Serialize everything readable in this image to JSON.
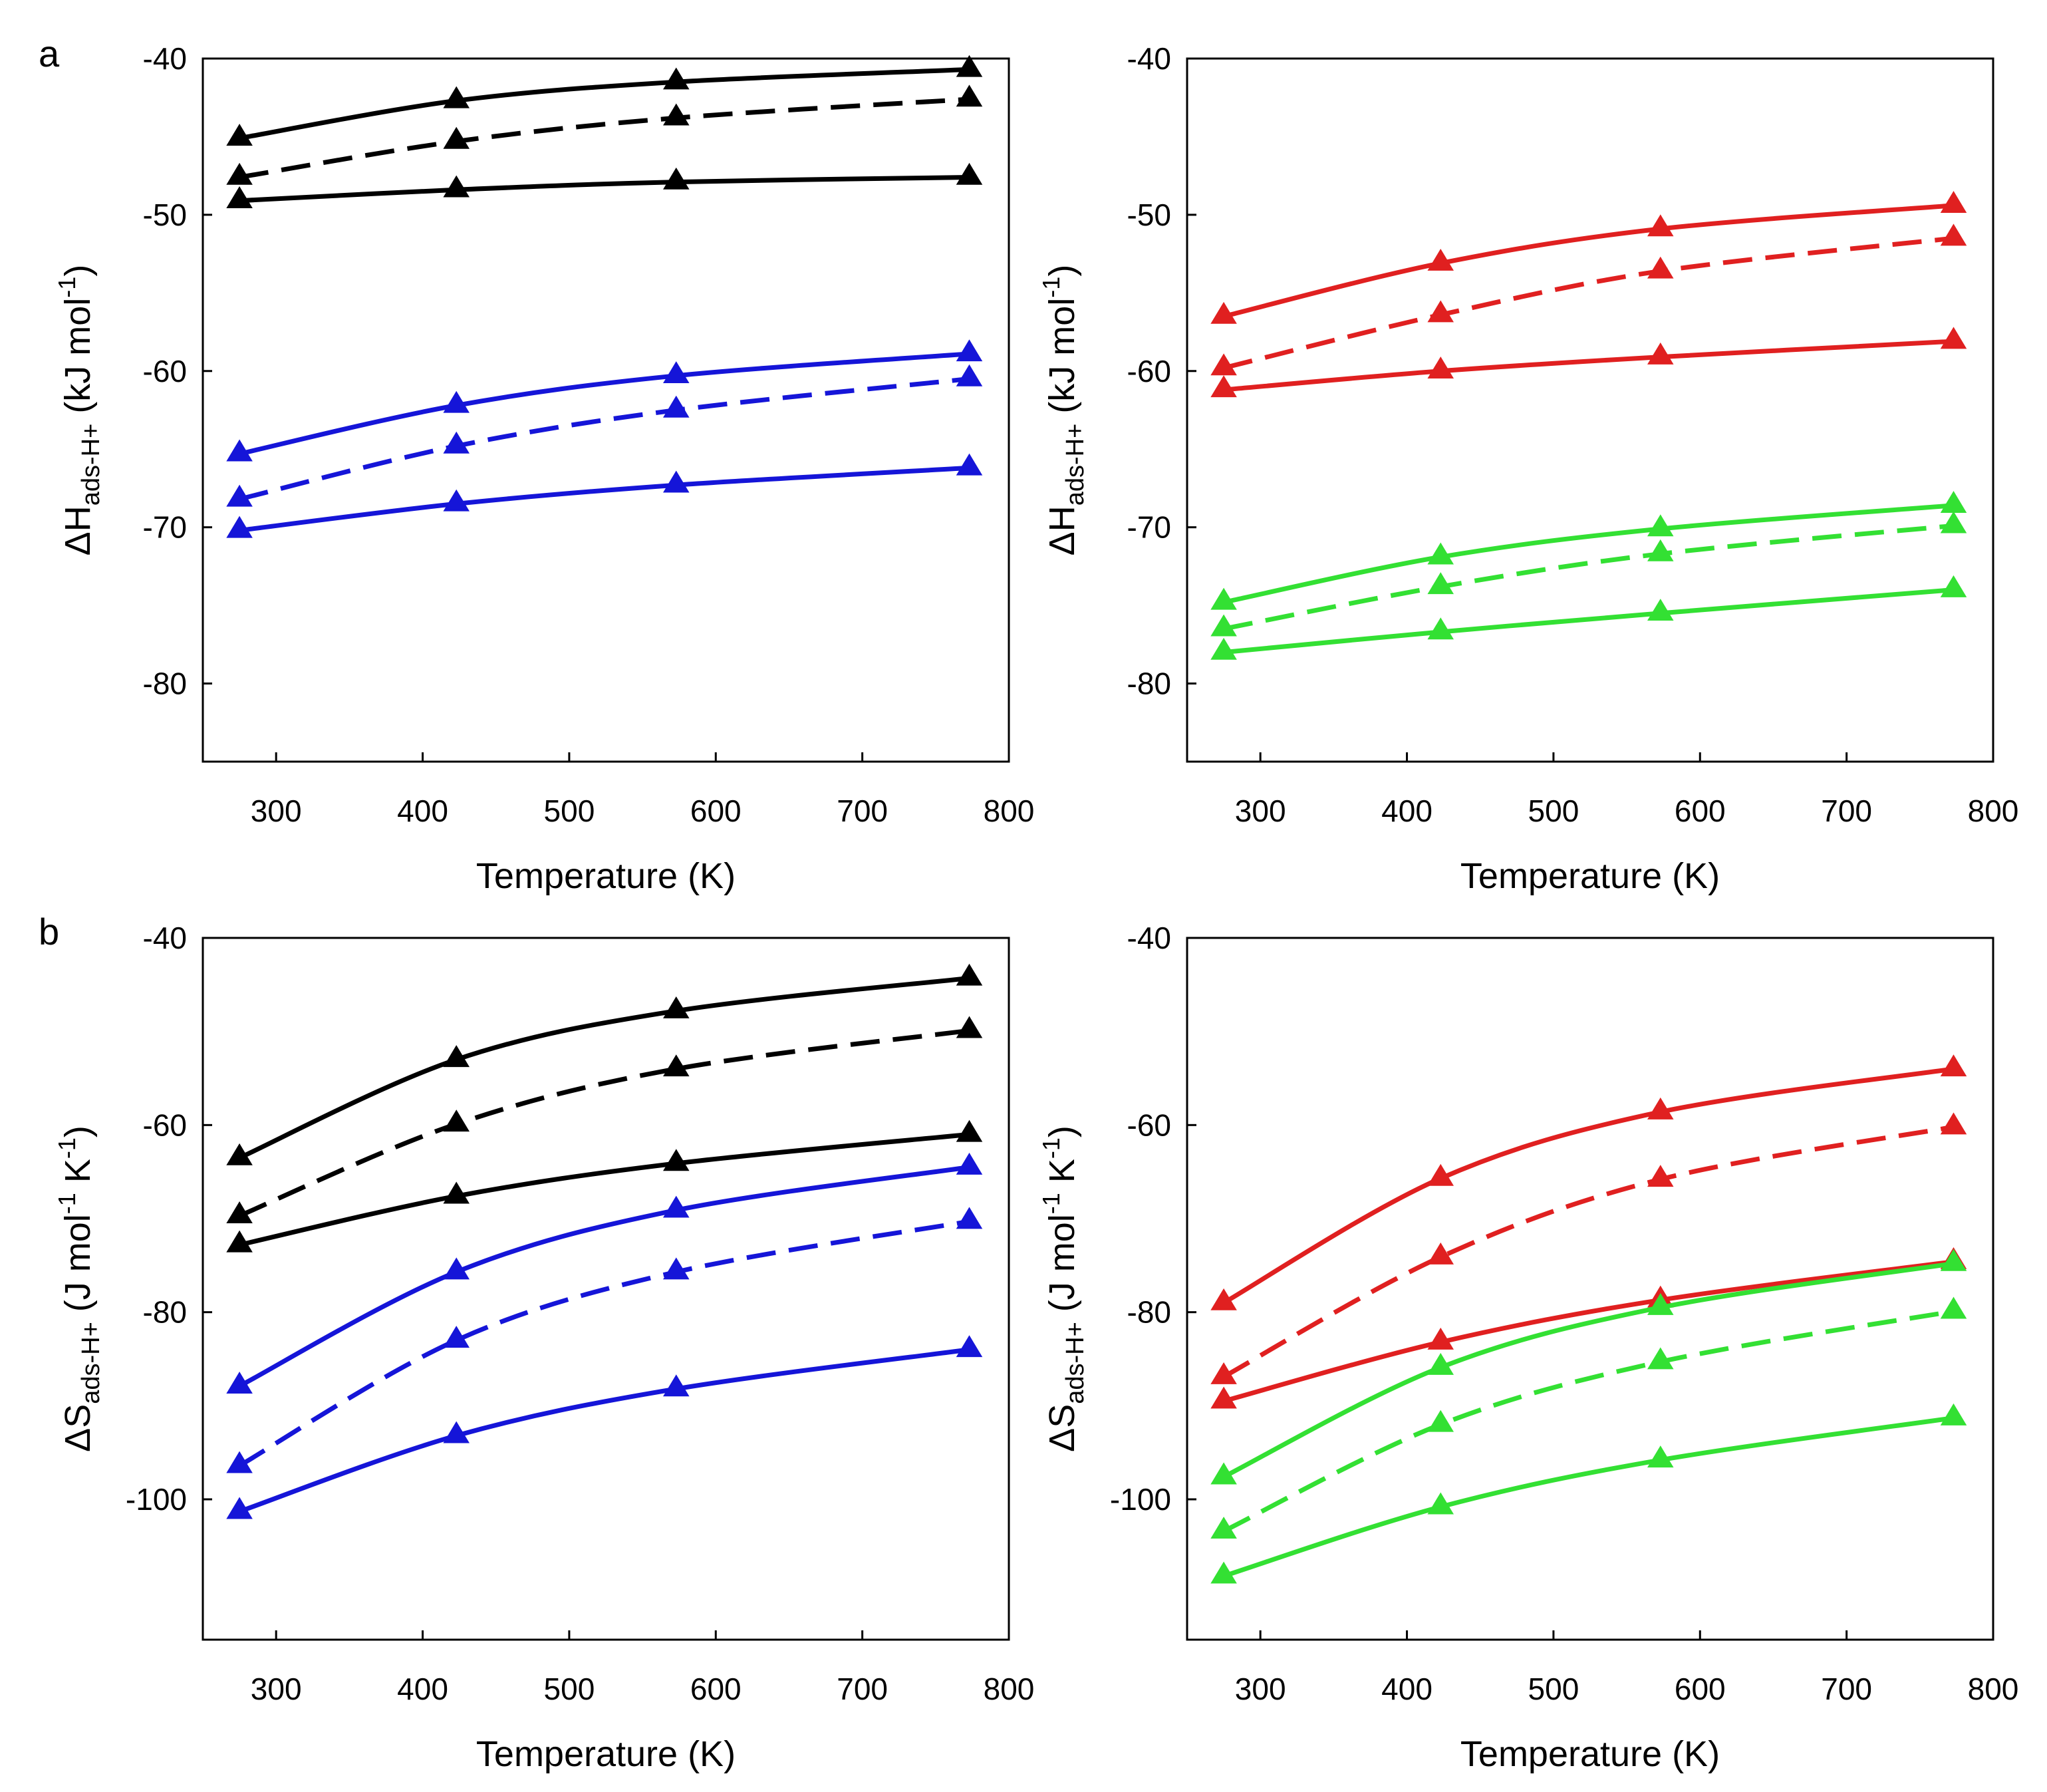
{
  "figure": {
    "panel_labels": [
      "a",
      "b"
    ],
    "colors": {
      "black": "#000000",
      "blue": "#1515d8",
      "red": "#e02020",
      "green": "#33e033"
    }
  },
  "chart_data": [
    {
      "id": "a-left",
      "panel": "a",
      "type": "line",
      "xlabel": "Temperature (K)",
      "ylabel": {
        "prefix": "ΔH",
        "subscript": "ads-H+",
        "units_prefix": " (kJ mol",
        "units_sup": "-1",
        "units_suffix": ")"
      },
      "xlim": [
        250,
        800
      ],
      "ylim": [
        -85,
        -40
      ],
      "xticks": [
        300,
        400,
        500,
        600,
        700,
        800
      ],
      "yticks": [
        -80,
        -70,
        -60,
        -50,
        -40
      ],
      "x": [
        275,
        423,
        573,
        773
      ],
      "series": [
        {
          "name": "black upper",
          "color": "#000000",
          "dash": "solid",
          "values": [
            -45.1,
            -42.7,
            -41.5,
            -40.7
          ]
        },
        {
          "name": "black dashed",
          "color": "#000000",
          "dash": "dashed",
          "values": [
            -47.6,
            -45.3,
            -43.8,
            -42.6
          ]
        },
        {
          "name": "black lower",
          "color": "#000000",
          "dash": "solid",
          "values": [
            -49.1,
            -48.4,
            -47.9,
            -47.6
          ]
        },
        {
          "name": "blue upper",
          "color": "#1515d8",
          "dash": "solid",
          "values": [
            -65.3,
            -62.2,
            -60.3,
            -58.9
          ]
        },
        {
          "name": "blue dashed",
          "color": "#1515d8",
          "dash": "dashed",
          "values": [
            -68.2,
            -64.8,
            -62.5,
            -60.5
          ]
        },
        {
          "name": "blue lower",
          "color": "#1515d8",
          "dash": "solid",
          "values": [
            -70.2,
            -68.5,
            -67.3,
            -66.2
          ]
        }
      ]
    },
    {
      "id": "a-right",
      "panel": "a",
      "type": "line",
      "xlabel": "Temperature (K)",
      "ylabel": {
        "prefix": "ΔH",
        "subscript": "ads-H+",
        "units_prefix": " (kJ mol",
        "units_sup": "-1",
        "units_suffix": ")"
      },
      "xlim": [
        250,
        800
      ],
      "ylim": [
        -85,
        -40
      ],
      "xticks": [
        300,
        400,
        500,
        600,
        700,
        800
      ],
      "yticks": [
        -80,
        -70,
        -60,
        -50,
        -40
      ],
      "x": [
        275,
        423,
        573,
        773
      ],
      "series": [
        {
          "name": "red upper",
          "color": "#e02020",
          "dash": "solid",
          "values": [
            -56.5,
            -53.1,
            -50.9,
            -49.4
          ]
        },
        {
          "name": "red dashed",
          "color": "#e02020",
          "dash": "dashed",
          "values": [
            -59.8,
            -56.4,
            -53.6,
            -51.5
          ]
        },
        {
          "name": "red lower",
          "color": "#e02020",
          "dash": "solid",
          "values": [
            -61.2,
            -60.0,
            -59.1,
            -58.1
          ]
        },
        {
          "name": "green upper",
          "color": "#33e033",
          "dash": "solid",
          "values": [
            -74.8,
            -71.9,
            -70.1,
            -68.6
          ]
        },
        {
          "name": "green dashed",
          "color": "#33e033",
          "dash": "dashed",
          "values": [
            -76.5,
            -73.8,
            -71.7,
            -69.9
          ]
        },
        {
          "name": "green lower",
          "color": "#33e033",
          "dash": "solid",
          "values": [
            -78.0,
            -76.7,
            -75.5,
            -74.0
          ]
        }
      ]
    },
    {
      "id": "b-left",
      "panel": "b",
      "type": "line",
      "xlabel": "Temperature (K)",
      "ylabel": {
        "prefix": "ΔS",
        "subscript": "ads-H+",
        "units_prefix": " (J mol",
        "units_sup": "-1",
        "units_mid": " K",
        "units_sup2": "-1",
        "units_suffix": ")"
      },
      "xlim": [
        250,
        800
      ],
      "ylim": [
        -115,
        -40
      ],
      "xticks": [
        300,
        400,
        500,
        600,
        700,
        800
      ],
      "yticks": [
        -100,
        -80,
        -60,
        -40
      ],
      "x": [
        275,
        423,
        573,
        773
      ],
      "series": [
        {
          "name": "black upper",
          "color": "#000000",
          "dash": "solid",
          "values": [
            -63.5,
            -53.0,
            -47.8,
            -44.3
          ]
        },
        {
          "name": "black dashed",
          "color": "#000000",
          "dash": "dashed",
          "values": [
            -69.7,
            -59.9,
            -54.0,
            -49.9
          ]
        },
        {
          "name": "black lower",
          "color": "#000000",
          "dash": "solid",
          "values": [
            -72.8,
            -67.6,
            -64.1,
            -61.0
          ]
        },
        {
          "name": "blue upper",
          "color": "#1515d8",
          "dash": "solid",
          "values": [
            -87.9,
            -75.7,
            -69.1,
            -64.5
          ]
        },
        {
          "name": "blue dashed",
          "color": "#1515d8",
          "dash": "dashed",
          "values": [
            -96.4,
            -83.0,
            -75.7,
            -70.3
          ]
        },
        {
          "name": "blue lower",
          "color": "#1515d8",
          "dash": "solid",
          "values": [
            -101.3,
            -93.2,
            -88.2,
            -84.0
          ]
        }
      ]
    },
    {
      "id": "b-right",
      "panel": "b",
      "type": "line",
      "xlabel": "Temperature (K)",
      "ylabel": {
        "prefix": "ΔS",
        "subscript": "ads-H+",
        "units_prefix": " (J mol",
        "units_sup": "-1",
        "units_mid": " K",
        "units_sup2": "-1",
        "units_suffix": ")"
      },
      "xlim": [
        250,
        800
      ],
      "ylim": [
        -115,
        -40
      ],
      "xticks": [
        300,
        400,
        500,
        600,
        700,
        800
      ],
      "yticks": [
        -100,
        -80,
        -60,
        -40
      ],
      "x": [
        275,
        423,
        573,
        773
      ],
      "series": [
        {
          "name": "red upper",
          "color": "#e02020",
          "dash": "solid",
          "values": [
            -79.0,
            -65.7,
            -58.6,
            -54.0
          ]
        },
        {
          "name": "red dashed",
          "color": "#e02020",
          "dash": "dashed",
          "values": [
            -86.9,
            -74.1,
            -65.8,
            -60.2
          ]
        },
        {
          "name": "red lower",
          "color": "#e02020",
          "dash": "solid",
          "values": [
            -89.5,
            -83.2,
            -78.7,
            -74.6
          ]
        },
        {
          "name": "green upper",
          "color": "#33e033",
          "dash": "solid",
          "values": [
            -97.6,
            -85.9,
            -79.5,
            -74.8
          ]
        },
        {
          "name": "green dashed",
          "color": "#33e033",
          "dash": "dashed",
          "values": [
            -103.4,
            -92.0,
            -85.3,
            -79.9
          ]
        },
        {
          "name": "green lower",
          "color": "#33e033",
          "dash": "solid",
          "values": [
            -108.2,
            -100.8,
            -95.8,
            -91.3
          ]
        }
      ]
    }
  ]
}
